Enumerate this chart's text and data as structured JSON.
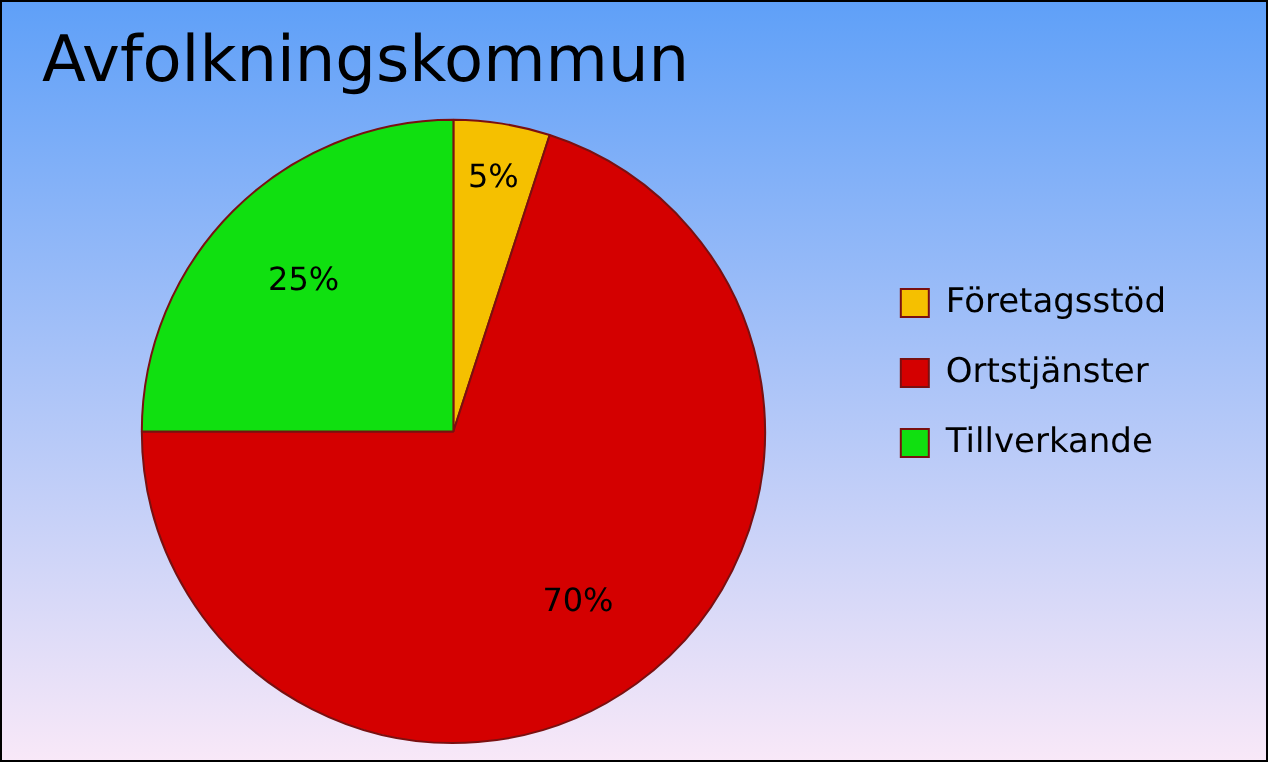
{
  "chart_data": {
    "type": "pie",
    "title": "Avfolkningskommun",
    "categories": [
      "Företagsstöd",
      "Ortstjänster",
      "Tillverkande"
    ],
    "values": [
      5,
      70,
      25
    ],
    "colors": [
      "#f5c000",
      "#d40000",
      "#10e010"
    ],
    "value_labels": [
      "5%",
      "70%",
      "25%"
    ],
    "legend": "right"
  }
}
